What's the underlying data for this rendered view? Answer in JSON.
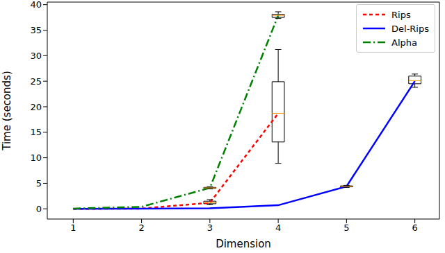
{
  "chart_data": {
    "type": "line",
    "x_label": "Dimension",
    "y_label": "Time (seconds)",
    "xlim": [
      0.62,
      6.36
    ],
    "xticks": [
      1,
      2,
      3,
      4,
      5,
      6
    ],
    "ylim": [
      -2,
      40.5
    ],
    "yticks": [
      0,
      5,
      10,
      15,
      20,
      25,
      30,
      35,
      40
    ],
    "grid": false,
    "legend": "upper right",
    "series": [
      {
        "name": "Rips",
        "color": "#ff0000",
        "line_style": "dashed",
        "x": [
          1,
          2,
          3,
          4
        ],
        "values": [
          0,
          0.05,
          1.2,
          18.7
        ],
        "boxes": [
          {
            "x": 3,
            "min": 0.8,
            "q1": 1.0,
            "median": 1.2,
            "q3": 1.5,
            "max": 1.8
          },
          {
            "x": 4,
            "min": 8.9,
            "q1": 13.1,
            "median": 18.7,
            "q3": 24.9,
            "max": 31.2
          }
        ]
      },
      {
        "name": "Del-Rips",
        "color": "#0000ff",
        "line_style": "solid",
        "x": [
          1,
          2,
          3,
          4,
          5,
          6
        ],
        "values": [
          0,
          0.05,
          0.1,
          0.7,
          4.4,
          25
        ],
        "boxes": [
          {
            "x": 5,
            "min": 4.2,
            "q1": 4.3,
            "median": 4.4,
            "q3": 4.5,
            "max": 4.6
          },
          {
            "x": 6,
            "min": 23.8,
            "q1": 24.5,
            "median": 25.1,
            "q3": 26.0,
            "max": 26.4
          }
        ]
      },
      {
        "name": "Alpha",
        "color": "#008000",
        "line_style": "dashdot",
        "x": [
          1,
          2,
          3,
          4
        ],
        "values": [
          0.05,
          0.4,
          4.1,
          37.9
        ],
        "boxes": [
          {
            "x": 3,
            "min": 3.9,
            "q1": 4.0,
            "median": 4.1,
            "q3": 4.2,
            "max": 4.3
          },
          {
            "x": 4,
            "min": 37.3,
            "q1": 37.5,
            "median": 37.9,
            "q3": 38.1,
            "max": 38.6
          }
        ]
      }
    ]
  }
}
